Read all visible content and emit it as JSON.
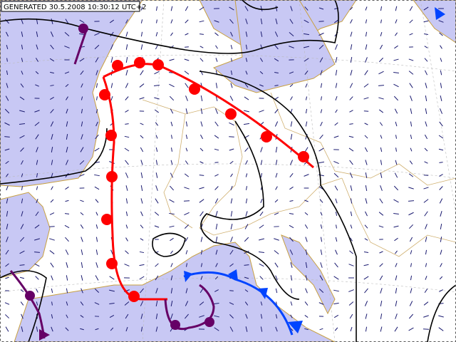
{
  "header": {
    "generated": "GENERATED 30.5.2008 10:30:12 UTC+2"
  }
}
